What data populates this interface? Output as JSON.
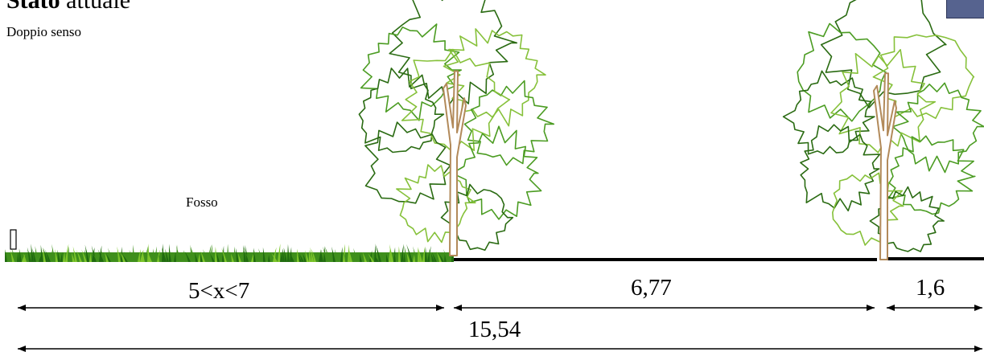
{
  "title": {
    "bold": "Stato",
    "rest": " attuale"
  },
  "subtitle": "Doppio senso",
  "labels": {
    "ditch": "Fosso"
  },
  "dimensions": {
    "ditch_width": "5<x<7",
    "road_width": "6,77",
    "side_width": "1,6",
    "total_width": "15,54"
  },
  "colors": {
    "grass_dark": "#1f6b0f",
    "grass_mid": "#3f8f1c",
    "grass_light": "#7cc42a",
    "tree_dark": "#2a6b12",
    "tree_mid": "#4b9c22",
    "tree_light": "#86c13a",
    "trunk": "#b28a5a",
    "road": "#000000",
    "corner_box": "#56638f"
  },
  "icons": [
    "tree-icon",
    "grass-icon",
    "post-icon",
    "dimension-arrow-icon"
  ]
}
